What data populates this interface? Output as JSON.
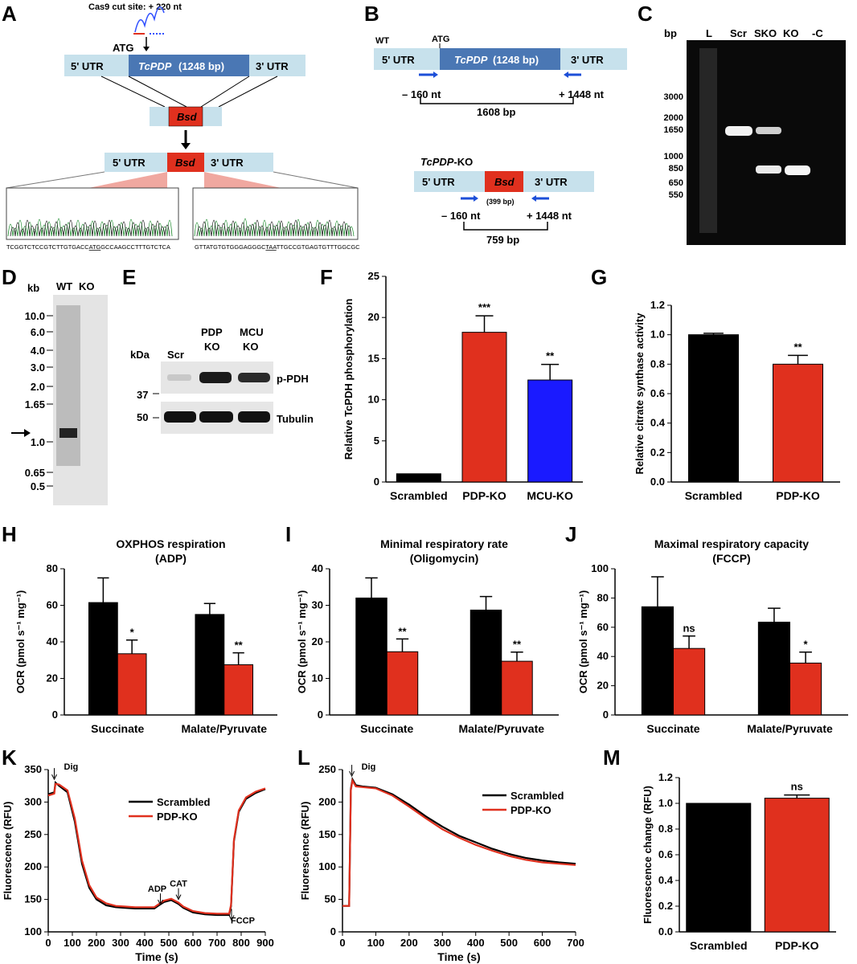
{
  "letters": [
    "A",
    "B",
    "C",
    "D",
    "E",
    "F",
    "G",
    "H",
    "I",
    "J",
    "K",
    "L",
    "M"
  ],
  "A": {
    "cut_site": "Cas9 cut site: + 220 nt",
    "atg": "ATG",
    "utr5": "5' UTR",
    "gene": "TcPDP",
    "gene_suffix": " (1248 bp)",
    "utr3": "3' UTR",
    "bsd": "Bsd",
    "seq_left_a": "TCGGTCTCCGTCTTGTGACC",
    "seq_left_u": "ATG",
    "seq_left_b": "GCCAAGCCTTTGTCTCA",
    "seq_right_a": "GTTATGTGTGGGAGGGC",
    "seq_right_u": "TAA",
    "seq_right_b": "TTGCCGTGAGTGTTTGGCGC"
  },
  "B": {
    "wt": "WT",
    "atg": "ATG",
    "utr5": "5' UTR",
    "gene": "TcPDP",
    "gene_suffix": " (1248 bp)",
    "utr3": "3' UTR",
    "p1": "– 160 nt",
    "p2": "+ 1448 nt",
    "size_wt": "1608 bp",
    "ko_title_a": "TcPDP",
    "ko_title_b": "-KO",
    "bsd": "Bsd",
    "bsd_size": "(399 bp)",
    "p3": "– 160 nt",
    "p4": "+ 1448 nt",
    "size_ko": "759 bp"
  },
  "C": {
    "bp": "bp",
    "lanes": [
      "L",
      "Scr",
      "SKO",
      "KO",
      "-C"
    ],
    "markers": [
      "3000",
      "2000",
      "1650",
      "1000",
      "850",
      "650",
      "550"
    ]
  },
  "D": {
    "kb": "kb",
    "lanes": [
      "WT",
      "KO"
    ],
    "markers": [
      "10.0",
      "6.0",
      "4.0",
      "3.0",
      "2.0",
      "1.65",
      "1.0",
      "0.65",
      "0.5"
    ]
  },
  "E": {
    "kda": "kDa",
    "lanes": [
      "Scr",
      "PDP",
      "KO",
      "MCU",
      "KO"
    ],
    "m37": "37",
    "m50": "50",
    "band1": "p-PDH",
    "band2": "Tubulin"
  },
  "chart_data": [
    {
      "panel": "F",
      "type": "bar",
      "categories": [
        "Scrambled",
        "PDP-KO",
        "MCU-KO"
      ],
      "values": [
        1.0,
        18.2,
        12.4
      ],
      "errors": [
        0,
        2.0,
        1.9
      ],
      "sig": [
        "",
        "***",
        "**"
      ],
      "colors": [
        "#000000",
        "#e0301e",
        "#1a1aff"
      ],
      "ylabel": "Relative TcPDH phosphorylation",
      "ylim": [
        0,
        25
      ],
      "yticks": [
        0,
        5,
        10,
        15,
        20,
        25
      ]
    },
    {
      "panel": "G",
      "type": "bar",
      "categories": [
        "Scrambled",
        "PDP-KO"
      ],
      "values": [
        1.0,
        0.8
      ],
      "errors": [
        0.01,
        0.06
      ],
      "sig": [
        "",
        "**"
      ],
      "colors": [
        "#000000",
        "#e0301e"
      ],
      "ylabel": "Relative citrate synthase activity",
      "ylim": [
        0,
        1.2
      ],
      "yticks": [
        "0.0",
        "0.2",
        "0.4",
        "0.6",
        "0.8",
        "1.0",
        "1.2"
      ]
    },
    {
      "panel": "H",
      "type": "bar",
      "title": "OXPHOS respiration",
      "subtitle": "(ADP)",
      "categories": [
        "Succinate",
        "Malate/Pyruvate"
      ],
      "series": [
        {
          "color": "#000000",
          "values": [
            61.5,
            55.0
          ],
          "errors": [
            13.5,
            6.0
          ]
        },
        {
          "color": "#e0301e",
          "values": [
            33.5,
            27.5
          ],
          "errors": [
            7.5,
            6.5
          ]
        }
      ],
      "sig": [
        "*",
        "**"
      ],
      "ylabel": "OCR  (pmol s⁻¹ mg⁻¹)",
      "ylim": [
        0,
        80
      ],
      "yticks": [
        0,
        20,
        40,
        60,
        80
      ]
    },
    {
      "panel": "I",
      "type": "bar",
      "title": "Minimal respiratory rate",
      "subtitle": "(Oligomycin)",
      "categories": [
        "Succinate",
        "Malate/Pyruvate"
      ],
      "series": [
        {
          "color": "#000000",
          "values": [
            32.0,
            28.7
          ],
          "errors": [
            5.5,
            3.7
          ]
        },
        {
          "color": "#e0301e",
          "values": [
            17.3,
            14.7
          ],
          "errors": [
            3.5,
            2.5
          ]
        }
      ],
      "sig": [
        "**",
        "**"
      ],
      "ylabel": "OCR  (pmol s⁻¹ mg⁻¹)",
      "ylim": [
        0,
        40
      ],
      "yticks": [
        0,
        10,
        20,
        30,
        40
      ]
    },
    {
      "panel": "J",
      "type": "bar",
      "title": "Maximal respiratory capacity",
      "subtitle": "(FCCP)",
      "categories": [
        "Succinate",
        "Malate/Pyruvate"
      ],
      "series": [
        {
          "color": "#000000",
          "values": [
            74.0,
            63.5
          ],
          "errors": [
            20.5,
            9.5
          ]
        },
        {
          "color": "#e0301e",
          "values": [
            45.5,
            35.5
          ],
          "errors": [
            8.5,
            7.5
          ]
        }
      ],
      "sig": [
        "ns",
        "*"
      ],
      "ylabel": "OCR  (pmol s⁻¹ mg⁻¹)",
      "ylim": [
        0,
        100
      ],
      "yticks": [
        0,
        20,
        40,
        60,
        80,
        100
      ]
    },
    {
      "panel": "K",
      "type": "line",
      "xlabel": "Time (s)",
      "ylabel": "Fluorescence (RFU)",
      "xlim": [
        0,
        900
      ],
      "ylim": [
        100,
        350
      ],
      "xticks": [
        0,
        100,
        200,
        300,
        400,
        500,
        600,
        700,
        800,
        900
      ],
      "yticks": [
        100,
        150,
        200,
        250,
        300,
        350
      ],
      "annotations": [
        "Dig",
        "ADP",
        "CAT",
        "FCCP"
      ],
      "series": [
        {
          "name": "Scrambled",
          "color": "#000000",
          "x": [
            0,
            25,
            30,
            45,
            80,
            110,
            140,
            170,
            200,
            240,
            280,
            320,
            360,
            400,
            440,
            455,
            480,
            510,
            540,
            560,
            600,
            650,
            700,
            740,
            750,
            758,
            770,
            790,
            820,
            860,
            900
          ],
          "y": [
            312,
            315,
            330,
            325,
            315,
            270,
            205,
            168,
            150,
            141,
            138,
            137,
            136,
            136,
            136,
            140,
            146,
            149,
            143,
            137,
            130,
            127,
            126,
            126,
            126,
            140,
            240,
            285,
            305,
            314,
            320
          ]
        },
        {
          "name": "PDP-KO",
          "color": "#e0301e",
          "x": [
            0,
            25,
            30,
            45,
            80,
            110,
            140,
            170,
            200,
            240,
            280,
            320,
            360,
            400,
            440,
            455,
            480,
            510,
            540,
            560,
            600,
            650,
            700,
            740,
            750,
            758,
            770,
            790,
            820,
            860,
            900
          ],
          "y": [
            310,
            313,
            328,
            327,
            318,
            275,
            210,
            172,
            153,
            144,
            140,
            139,
            138,
            138,
            138,
            142,
            148,
            151,
            145,
            139,
            132,
            129,
            128,
            128,
            128,
            142,
            242,
            287,
            307,
            316,
            321
          ]
        }
      ]
    },
    {
      "panel": "L",
      "type": "line",
      "xlabel": "Time (s)",
      "ylabel": "Fluorescence (RFU)",
      "xlim": [
        0,
        700
      ],
      "ylim": [
        0,
        250
      ],
      "xticks": [
        0,
        100,
        200,
        300,
        400,
        500,
        600,
        700
      ],
      "yticks": [
        0,
        50,
        100,
        150,
        200,
        250
      ],
      "annotations": [
        "Dig"
      ],
      "series": [
        {
          "name": "Scrambled",
          "color": "#000000",
          "x": [
            0,
            20,
            25,
            30,
            40,
            60,
            100,
            150,
            200,
            250,
            300,
            350,
            400,
            450,
            500,
            550,
            600,
            650,
            700
          ],
          "y": [
            40,
            40,
            220,
            235,
            226,
            224,
            222,
            212,
            196,
            178,
            162,
            148,
            138,
            128,
            120,
            114,
            110,
            107,
            105
          ]
        },
        {
          "name": "PDP-KO",
          "color": "#e0301e",
          "x": [
            0,
            20,
            25,
            30,
            40,
            60,
            100,
            150,
            200,
            250,
            300,
            350,
            400,
            450,
            500,
            550,
            600,
            650,
            700
          ],
          "y": [
            40,
            40,
            218,
            233,
            224,
            223,
            221,
            210,
            193,
            175,
            158,
            145,
            134,
            125,
            117,
            111,
            107,
            105,
            103
          ]
        }
      ]
    },
    {
      "panel": "M",
      "type": "bar",
      "categories": [
        "Scrambled",
        "PDP-KO"
      ],
      "values": [
        1.0,
        1.04
      ],
      "errors": [
        0,
        0.025
      ],
      "sig": [
        "",
        "ns"
      ],
      "colors": [
        "#000000",
        "#e0301e"
      ],
      "ylabel": "Fluorescence change (RFU)",
      "ylim": [
        0,
        1.2
      ],
      "yticks": [
        "0.0",
        "0.2",
        "0.4",
        "0.6",
        "0.8",
        "1.0",
        "1.2"
      ]
    }
  ]
}
